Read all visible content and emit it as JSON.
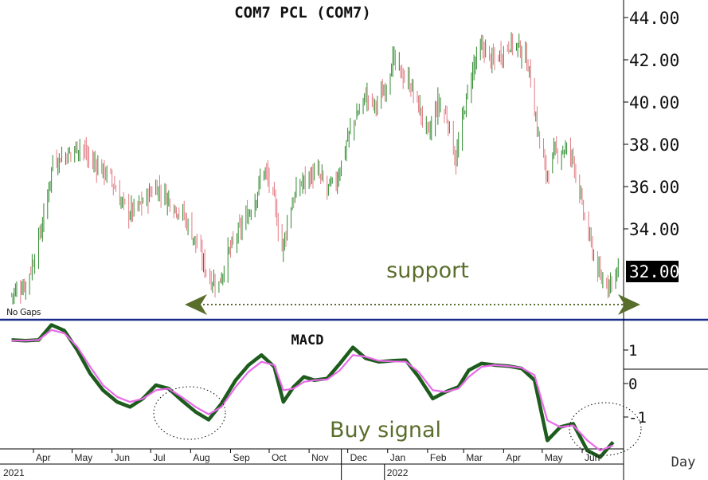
{
  "chart_data": [
    {
      "type": "candlestick",
      "title": "COM7 PCL (COM7)",
      "ylim": [
        30.6,
        45.0
      ],
      "y_ticks": [
        "44.00",
        "42.00",
        "40.00",
        "38.00",
        "36.00",
        "34.00"
      ],
      "last_price_label": "32.00",
      "corner_label": "No Gaps",
      "annotation": "support",
      "support_level": 30.8,
      "colors": {
        "up": "#2e8b2e",
        "down": "#e27b84",
        "support": "#5a6e2c",
        "divider": "#1a2a8a"
      },
      "x_month_labels": [
        "Apr",
        "May",
        "Jun",
        "Jul",
        "Aug",
        "Sep",
        "Oct",
        "Nov",
        "Dec",
        "Jan",
        "Feb",
        "Mar",
        "Apr",
        "May",
        "Jun"
      ],
      "x_year_labels": [
        "2021",
        "2022"
      ],
      "x_period_label": "Day",
      "close_path": [
        [
          "2021-03-15",
          30.9
        ],
        [
          "2021-03-26",
          31.4
        ],
        [
          "2021-04-01",
          32.5
        ],
        [
          "2021-04-09",
          34.5
        ],
        [
          "2021-04-16",
          37.2
        ],
        [
          "2021-04-30",
          37.6
        ],
        [
          "2021-05-07",
          38.0
        ],
        [
          "2021-05-14",
          37.3
        ],
        [
          "2021-05-21",
          37.0
        ],
        [
          "2021-05-31",
          36.4
        ],
        [
          "2021-06-07",
          35.4
        ],
        [
          "2021-06-14",
          34.8
        ],
        [
          "2021-06-21",
          35.0
        ],
        [
          "2021-06-28",
          35.5
        ],
        [
          "2021-07-05",
          36.0
        ],
        [
          "2021-07-12",
          35.6
        ],
        [
          "2021-07-19",
          35.1
        ],
        [
          "2021-07-26",
          34.7
        ],
        [
          "2021-08-02",
          33.8
        ],
        [
          "2021-08-09",
          32.7
        ],
        [
          "2021-08-16",
          31.6
        ],
        [
          "2021-08-23",
          31.4
        ],
        [
          "2021-08-30",
          32.8
        ],
        [
          "2021-09-06",
          33.7
        ],
        [
          "2021-09-13",
          34.5
        ],
        [
          "2021-09-20",
          35.4
        ],
        [
          "2021-09-27",
          36.9
        ],
        [
          "2021-10-04",
          35.6
        ],
        [
          "2021-10-11",
          33.0
        ],
        [
          "2021-10-18",
          35.1
        ],
        [
          "2021-10-25",
          36.1
        ],
        [
          "2021-11-01",
          36.5
        ],
        [
          "2021-11-08",
          36.6
        ],
        [
          "2021-11-15",
          35.9
        ],
        [
          "2021-11-22",
          36.2
        ],
        [
          "2021-12-01",
          38.3
        ],
        [
          "2021-12-08",
          39.4
        ],
        [
          "2021-12-15",
          40.3
        ],
        [
          "2021-12-22",
          39.8
        ],
        [
          "2021-12-29",
          40.5
        ],
        [
          "2022-01-05",
          42.0
        ],
        [
          "2022-01-12",
          41.3
        ],
        [
          "2022-01-19",
          40.8
        ],
        [
          "2022-01-26",
          39.6
        ],
        [
          "2022-02-02",
          38.4
        ],
        [
          "2022-02-09",
          39.9
        ],
        [
          "2022-02-16",
          39.3
        ],
        [
          "2022-02-23",
          37.2
        ],
        [
          "2022-03-02",
          39.8
        ],
        [
          "2022-03-09",
          41.8
        ],
        [
          "2022-03-16",
          42.6
        ],
        [
          "2022-03-23",
          41.9
        ],
        [
          "2022-03-30",
          42.3
        ],
        [
          "2022-04-06",
          42.8
        ],
        [
          "2022-04-13",
          42.6
        ],
        [
          "2022-04-20",
          41.8
        ],
        [
          "2022-04-27",
          38.8
        ],
        [
          "2022-05-04",
          36.6
        ],
        [
          "2022-05-11",
          37.6
        ],
        [
          "2022-05-18",
          37.8
        ],
        [
          "2022-05-25",
          37.4
        ],
        [
          "2022-06-01",
          35.0
        ],
        [
          "2022-06-08",
          33.2
        ],
        [
          "2022-06-15",
          31.6
        ],
        [
          "2022-06-22",
          31.5
        ],
        [
          "2022-06-29",
          32.1
        ]
      ]
    },
    {
      "type": "line",
      "title": "MACD",
      "ylim": [
        -2.4,
        2.0
      ],
      "y_ticks": [
        "1",
        "0",
        "-1"
      ],
      "annotation": "Buy signal",
      "colors": {
        "macd": "#1e5c1e",
        "signal": "#e86ae8"
      },
      "series": [
        {
          "values": [
            [
              "2021-03-15",
              1.3
            ],
            [
              "2021-03-26",
              1.28
            ],
            [
              "2021-04-05",
              1.3
            ],
            [
              "2021-04-15",
              1.75
            ],
            [
              "2021-04-25",
              1.58
            ],
            [
              "2021-05-05",
              1.0
            ],
            [
              "2021-05-15",
              0.3
            ],
            [
              "2021-05-25",
              -0.2
            ],
            [
              "2021-06-05",
              -0.55
            ],
            [
              "2021-06-15",
              -0.7
            ],
            [
              "2021-06-25",
              -0.45
            ],
            [
              "2021-07-05",
              -0.05
            ],
            [
              "2021-07-15",
              -0.15
            ],
            [
              "2021-07-25",
              -0.5
            ],
            [
              "2021-08-05",
              -0.85
            ],
            [
              "2021-08-15",
              -1.08
            ],
            [
              "2021-08-25",
              -0.6
            ],
            [
              "2021-09-05",
              0.1
            ],
            [
              "2021-09-15",
              0.55
            ],
            [
              "2021-09-25",
              0.85
            ],
            [
              "2021-10-05",
              0.5
            ],
            [
              "2021-10-12",
              -0.55
            ],
            [
              "2021-10-20",
              -0.1
            ],
            [
              "2021-10-28",
              0.2
            ],
            [
              "2021-11-05",
              0.1
            ],
            [
              "2021-11-15",
              0.15
            ],
            [
              "2021-11-25",
              0.6
            ],
            [
              "2021-12-05",
              1.08
            ],
            [
              "2021-12-15",
              0.75
            ],
            [
              "2021-12-25",
              0.65
            ],
            [
              "2022-01-05",
              0.68
            ],
            [
              "2022-01-15",
              0.7
            ],
            [
              "2022-01-25",
              0.2
            ],
            [
              "2022-02-05",
              -0.45
            ],
            [
              "2022-02-15",
              -0.25
            ],
            [
              "2022-02-25",
              -0.1
            ],
            [
              "2022-03-05",
              0.4
            ],
            [
              "2022-03-15",
              0.6
            ],
            [
              "2022-03-25",
              0.55
            ],
            [
              "2022-04-05",
              0.52
            ],
            [
              "2022-04-15",
              0.45
            ],
            [
              "2022-04-25",
              0.1
            ],
            [
              "2022-05-05",
              -1.7
            ],
            [
              "2022-05-15",
              -1.3
            ],
            [
              "2022-05-25",
              -1.2
            ],
            [
              "2022-06-05",
              -2.0
            ],
            [
              "2022-06-15",
              -2.2
            ],
            [
              "2022-06-25",
              -1.75
            ]
          ]
        },
        {
          "values": [
            [
              "2021-03-15",
              1.28
            ],
            [
              "2021-03-26",
              1.28
            ],
            [
              "2021-04-05",
              1.3
            ],
            [
              "2021-04-15",
              1.6
            ],
            [
              "2021-04-25",
              1.5
            ],
            [
              "2021-05-05",
              1.1
            ],
            [
              "2021-05-15",
              0.5
            ],
            [
              "2021-05-25",
              -0.05
            ],
            [
              "2021-06-05",
              -0.4
            ],
            [
              "2021-06-15",
              -0.55
            ],
            [
              "2021-06-25",
              -0.45
            ],
            [
              "2021-07-05",
              -0.2
            ],
            [
              "2021-07-15",
              -0.15
            ],
            [
              "2021-07-25",
              -0.4
            ],
            [
              "2021-08-05",
              -0.7
            ],
            [
              "2021-08-15",
              -0.92
            ],
            [
              "2021-08-25",
              -0.7
            ],
            [
              "2021-09-05",
              -0.1
            ],
            [
              "2021-09-15",
              0.35
            ],
            [
              "2021-09-25",
              0.65
            ],
            [
              "2021-10-05",
              0.55
            ],
            [
              "2021-10-12",
              -0.2
            ],
            [
              "2021-10-20",
              -0.15
            ],
            [
              "2021-10-28",
              0.05
            ],
            [
              "2021-11-05",
              0.1
            ],
            [
              "2021-11-15",
              0.12
            ],
            [
              "2021-11-25",
              0.4
            ],
            [
              "2021-12-05",
              0.85
            ],
            [
              "2021-12-15",
              0.8
            ],
            [
              "2021-12-25",
              0.68
            ],
            [
              "2022-01-05",
              0.66
            ],
            [
              "2022-01-15",
              0.65
            ],
            [
              "2022-01-25",
              0.35
            ],
            [
              "2022-02-05",
              -0.2
            ],
            [
              "2022-02-15",
              -0.25
            ],
            [
              "2022-02-25",
              -0.15
            ],
            [
              "2022-03-05",
              0.2
            ],
            [
              "2022-03-15",
              0.5
            ],
            [
              "2022-03-25",
              0.55
            ],
            [
              "2022-04-05",
              0.52
            ],
            [
              "2022-04-15",
              0.47
            ],
            [
              "2022-04-25",
              0.25
            ],
            [
              "2022-05-05",
              -1.1
            ],
            [
              "2022-05-15",
              -1.3
            ],
            [
              "2022-05-25",
              -1.25
            ],
            [
              "2022-06-05",
              -1.7
            ],
            [
              "2022-06-15",
              -2.0
            ],
            [
              "2022-06-25",
              -1.85
            ]
          ]
        }
      ]
    }
  ]
}
